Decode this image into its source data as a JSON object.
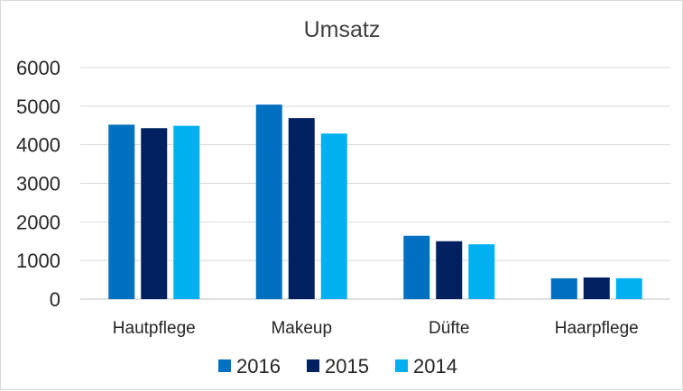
{
  "chart_data": {
    "type": "bar",
    "title": "Umsatz",
    "xlabel": "",
    "ylabel": "",
    "categories": [
      "Hautpflege",
      "Makeup",
      "Düfte",
      "Haarpflege"
    ],
    "series": [
      {
        "name": "2016",
        "color": "#0070C0",
        "values": [
          4520,
          5040,
          1640,
          540
        ]
      },
      {
        "name": "2015",
        "color": "#002060",
        "values": [
          4430,
          4690,
          1500,
          560
        ]
      },
      {
        "name": "2014",
        "color": "#00B0F0",
        "values": [
          4490,
          4290,
          1420,
          540
        ]
      }
    ],
    "ylim": [
      0,
      6000
    ],
    "yticks": [
      "0",
      "1000",
      "2000",
      "3000",
      "4000",
      "5000",
      "6000"
    ],
    "grid": true,
    "legend_position": "bottom"
  }
}
